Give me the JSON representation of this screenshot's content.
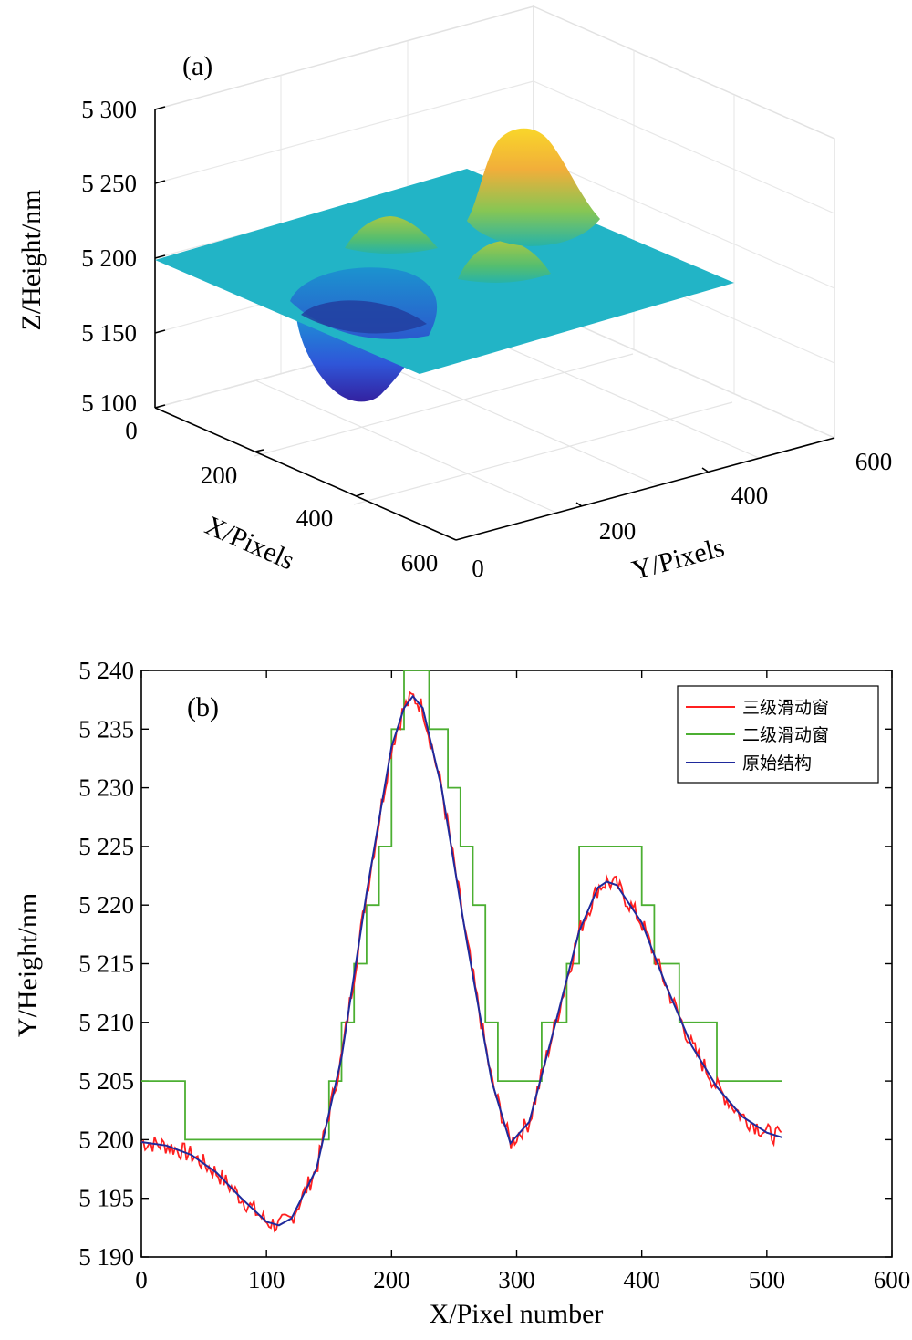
{
  "chart_data": [
    {
      "type": "surface",
      "panel_label": "(a)",
      "xlabel": "X/Pixels",
      "ylabel": "Y/Pixels",
      "zlabel": "Z/Height/nm",
      "x_ticks": [
        "0",
        "200",
        "400",
        "600"
      ],
      "y_ticks": [
        "0",
        "200",
        "400",
        "600"
      ],
      "z_ticks": [
        "5 100",
        "5 150",
        "5 200",
        "5 250",
        "5 300"
      ],
      "xlim": [
        0,
        600
      ],
      "ylim": [
        0,
        600
      ],
      "zlim": [
        5100,
        5300
      ],
      "base_height": 5200,
      "features": [
        {
          "x": 280,
          "y": 120,
          "height": 5100
        },
        {
          "x": 120,
          "y": 260,
          "height": 5225
        },
        {
          "x": 200,
          "y": 420,
          "height": 5225
        },
        {
          "x": 90,
          "y": 470,
          "height": 5285
        }
      ],
      "grid": true,
      "colormap": [
        "#3e26a8",
        "#2f6ef0",
        "#1ea3d8",
        "#21b7a5",
        "#80cb58",
        "#e1b830",
        "#fbd123",
        "#f9fb15"
      ]
    },
    {
      "type": "line",
      "panel_label": "(b)",
      "xlabel": "X/Pixel number",
      "ylabel": "Y/Height/nm",
      "xlim": [
        0,
        600
      ],
      "ylim": [
        5190,
        5240
      ],
      "x_ticks": [
        "0",
        "100",
        "200",
        "300",
        "400",
        "500",
        "600"
      ],
      "y_ticks": [
        "5 190",
        "5 195",
        "5 200",
        "5 205",
        "5 210",
        "5 215",
        "5 220",
        "5 225",
        "5 230",
        "5 235",
        "5 240"
      ],
      "legend_position": "top-right",
      "grid": false,
      "series": [
        {
          "name": "三级滑动窗",
          "color": "#ff2020",
          "noise_amplitude": 0.8,
          "x": [
            0,
            20,
            40,
            60,
            80,
            100,
            110,
            120,
            140,
            160,
            180,
            200,
            210,
            217,
            225,
            240,
            260,
            280,
            295,
            310,
            330,
            350,
            365,
            372,
            380,
            400,
            420,
            440,
            460,
            480,
            500,
            512
          ],
          "values": [
            5199.8,
            5199.5,
            5198.7,
            5197.2,
            5195.0,
            5193.0,
            5192.7,
            5193.3,
            5197.5,
            5207.0,
            5221.0,
            5233.5,
            5236.8,
            5237.8,
            5236.8,
            5230.0,
            5217.0,
            5205.0,
            5199.7,
            5201.5,
            5209.5,
            5217.8,
            5221.5,
            5222.0,
            5221.7,
            5218.5,
            5213.0,
            5208.0,
            5204.5,
            5202.0,
            5200.6,
            5200.2
          ]
        },
        {
          "name": "二级滑动窗",
          "color": "#4caf32",
          "x": [
            0,
            35,
            35,
            150,
            150,
            160,
            160,
            170,
            170,
            180,
            180,
            190,
            190,
            200,
            200,
            210,
            210,
            230,
            230,
            245,
            245,
            255,
            255,
            265,
            265,
            275,
            275,
            285,
            285,
            320,
            320,
            340,
            340,
            350,
            350,
            400,
            400,
            410,
            410,
            430,
            430,
            460,
            460,
            512
          ],
          "values": [
            5205,
            5205,
            5200,
            5200,
            5205,
            5205,
            5210,
            5210,
            5215,
            5215,
            5220,
            5220,
            5225,
            5225,
            5235,
            5235,
            5240,
            5240,
            5235,
            5235,
            5230,
            5230,
            5225,
            5225,
            5220,
            5220,
            5210,
            5210,
            5205,
            5205,
            5210,
            5210,
            5215,
            5215,
            5225,
            5225,
            5220,
            5220,
            5215,
            5215,
            5210,
            5210,
            5205,
            5205
          ]
        },
        {
          "name": "原始结构",
          "color": "#1f2a9c",
          "x": [
            0,
            20,
            40,
            60,
            80,
            100,
            110,
            120,
            140,
            160,
            180,
            200,
            210,
            217,
            225,
            240,
            260,
            280,
            295,
            310,
            330,
            350,
            365,
            372,
            380,
            400,
            420,
            440,
            460,
            480,
            500,
            512
          ],
          "values": [
            5199.8,
            5199.5,
            5198.7,
            5197.2,
            5195.0,
            5193.0,
            5192.7,
            5193.3,
            5197.5,
            5207.0,
            5221.0,
            5233.5,
            5236.8,
            5237.8,
            5236.8,
            5230.0,
            5217.0,
            5205.0,
            5199.7,
            5201.5,
            5209.5,
            5217.8,
            5221.5,
            5222.0,
            5221.7,
            5218.5,
            5213.0,
            5208.0,
            5204.5,
            5202.0,
            5200.6,
            5200.2
          ]
        }
      ]
    }
  ]
}
